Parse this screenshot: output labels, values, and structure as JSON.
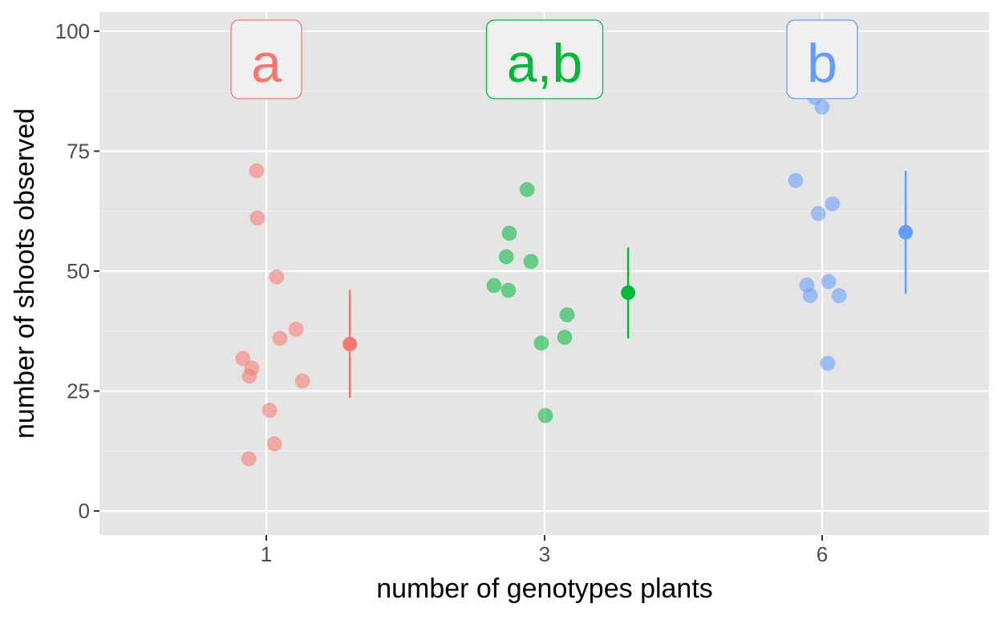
{
  "chart_data": {
    "type": "scatter",
    "xlabel": "number of genotypes plants",
    "ylabel": "number of shoots observed",
    "categories": [
      "1",
      "3",
      "6"
    ],
    "ylim": [
      -5,
      104
    ],
    "yticks": [
      0,
      25,
      50,
      75,
      100
    ],
    "grid": true,
    "legend": "none",
    "series": [
      {
        "category": "1",
        "color": "#F8766D",
        "letter": "a",
        "points": [
          {
            "jitter": -0.035,
            "y": 70.9
          },
          {
            "jitter": -0.032,
            "y": 61.1
          },
          {
            "jitter": 0.037,
            "y": 48.8
          },
          {
            "jitter": 0.107,
            "y": 37.9
          },
          {
            "jitter": 0.049,
            "y": 36.0
          },
          {
            "jitter": -0.084,
            "y": 31.8
          },
          {
            "jitter": -0.052,
            "y": 29.8
          },
          {
            "jitter": -0.061,
            "y": 28.1
          },
          {
            "jitter": 0.13,
            "y": 27.1
          },
          {
            "jitter": 0.012,
            "y": 21.0
          },
          {
            "jitter": 0.029,
            "y": 14.0
          },
          {
            "jitter": -0.063,
            "y": 10.9
          }
        ],
        "mean": 34.8,
        "lower": 23.6,
        "upper": 46.1
      },
      {
        "category": "3",
        "color": "#00BA38",
        "letter": "a,b",
        "points": [
          {
            "jitter": -0.063,
            "y": 67.0
          },
          {
            "jitter": -0.127,
            "y": 57.9
          },
          {
            "jitter": -0.138,
            "y": 53.0
          },
          {
            "jitter": -0.049,
            "y": 52.0
          },
          {
            "jitter": -0.182,
            "y": 47.0
          },
          {
            "jitter": -0.13,
            "y": 46.0
          },
          {
            "jitter": 0.081,
            "y": 40.9
          },
          {
            "jitter": 0.072,
            "y": 36.2
          },
          {
            "jitter": -0.012,
            "y": 35.0
          },
          {
            "jitter": 0.003,
            "y": 19.9
          }
        ],
        "mean": 45.5,
        "lower": 36.0,
        "upper": 54.9
      },
      {
        "category": "6",
        "color": "#619CFF",
        "letter": "b",
        "points": [
          {
            "jitter": -0.026,
            "y": 86.2
          },
          {
            "jitter": 0.0,
            "y": 84.2
          },
          {
            "jitter": -0.095,
            "y": 68.9
          },
          {
            "jitter": 0.037,
            "y": 64.0
          },
          {
            "jitter": -0.014,
            "y": 62.0
          },
          {
            "jitter": -0.055,
            "y": 47.1
          },
          {
            "jitter": 0.023,
            "y": 47.8
          },
          {
            "jitter": -0.043,
            "y": 44.9
          },
          {
            "jitter": 0.061,
            "y": 44.9
          },
          {
            "jitter": 0.02,
            "y": 30.8
          }
        ],
        "mean": 58.1,
        "lower": 45.3,
        "upper": 70.9
      }
    ]
  }
}
